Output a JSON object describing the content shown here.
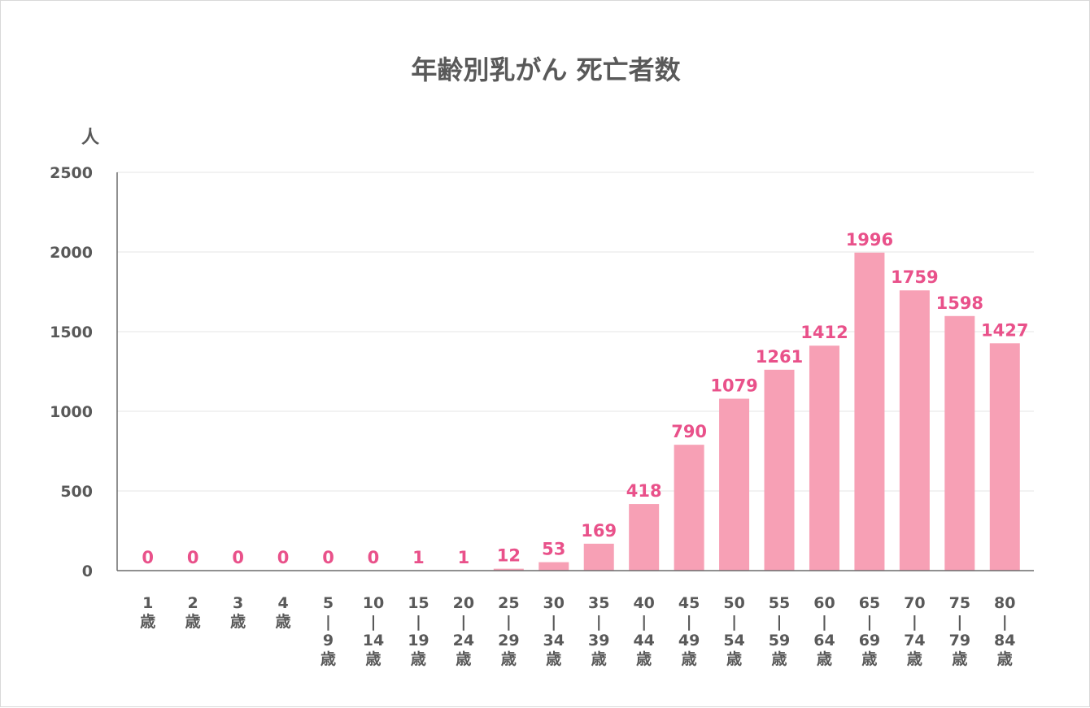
{
  "chart_data": {
    "type": "bar",
    "title": "年齢別乳がん 死亡者数",
    "ylabel": "人",
    "xlabel": "",
    "ylim": [
      0,
      2500
    ],
    "yticks": [
      0,
      500,
      1000,
      1500,
      2000,
      2500
    ],
    "grid": true,
    "legend": "none",
    "bar_color": "#f7a0b5",
    "label_color": "#e9518a",
    "categories": [
      [
        "1",
        "歳"
      ],
      [
        "2",
        "歳"
      ],
      [
        "3",
        "歳"
      ],
      [
        "4",
        "歳"
      ],
      [
        "5",
        "|",
        "9",
        "歳"
      ],
      [
        "10",
        "|",
        "14",
        "歳"
      ],
      [
        "15",
        "|",
        "19",
        "歳"
      ],
      [
        "20",
        "|",
        "24",
        "歳"
      ],
      [
        "25",
        "|",
        "29",
        "歳"
      ],
      [
        "30",
        "|",
        "34",
        "歳"
      ],
      [
        "35",
        "|",
        "39",
        "歳"
      ],
      [
        "40",
        "|",
        "44",
        "歳"
      ],
      [
        "45",
        "|",
        "49",
        "歳"
      ],
      [
        "50",
        "|",
        "54",
        "歳"
      ],
      [
        "55",
        "|",
        "59",
        "歳"
      ],
      [
        "60",
        "|",
        "64",
        "歳"
      ],
      [
        "65",
        "|",
        "69",
        "歳"
      ],
      [
        "70",
        "|",
        "74",
        "歳"
      ],
      [
        "75",
        "|",
        "79",
        "歳"
      ],
      [
        "80",
        "|",
        "84",
        "歳"
      ]
    ],
    "values": [
      0,
      0,
      0,
      0,
      0,
      0,
      1,
      1,
      12,
      53,
      169,
      418,
      790,
      1079,
      1261,
      1412,
      1996,
      1759,
      1598,
      1427
    ]
  }
}
